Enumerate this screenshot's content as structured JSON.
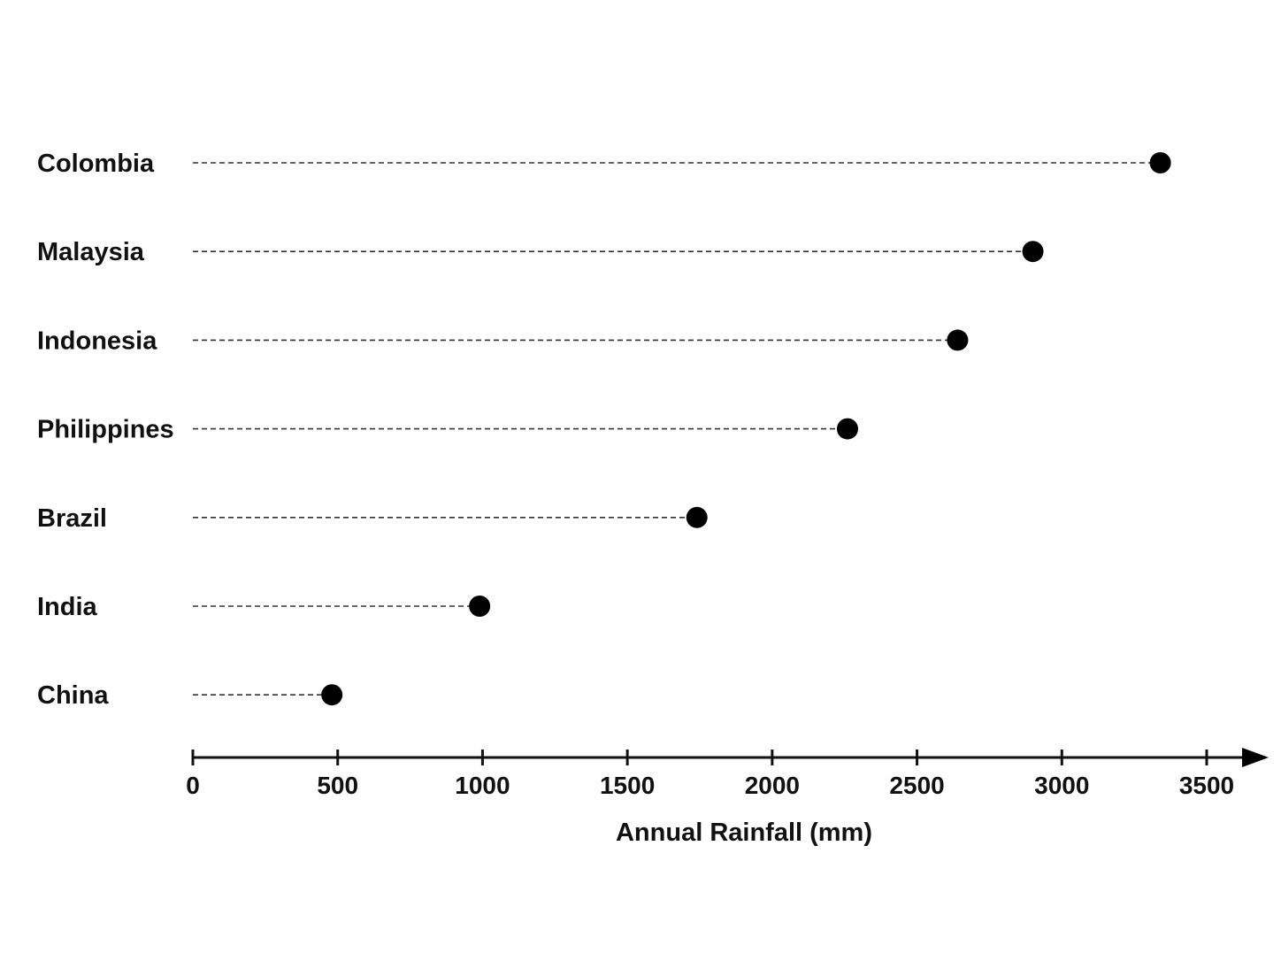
{
  "chart_data": {
    "type": "dot",
    "categories": [
      "Colombia",
      "Malaysia",
      "Indonesia",
      "Philippines",
      "Brazil",
      "India",
      "China"
    ],
    "values": [
      3340,
      2900,
      2640,
      2260,
      1740,
      990,
      480
    ],
    "xlabel": "Annual Rainfall (mm)",
    "xticks": [
      0,
      500,
      1000,
      1500,
      2000,
      2500,
      3000,
      3500
    ],
    "xlim": [
      0,
      3500
    ],
    "grid": false,
    "marker_color": "#000000"
  }
}
